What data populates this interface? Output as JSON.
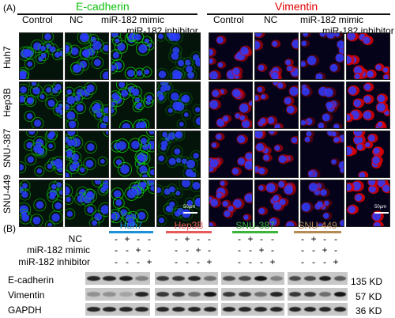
{
  "panel_a": {
    "letter": "(A)",
    "ecadherin_title": "E-cadherin",
    "vimentin_title": "Vimentin",
    "columns": [
      "Control",
      "NC",
      "miR-182 mimic",
      "miR-182 inhibitor"
    ],
    "rows": [
      "Huh7",
      "Hep3B",
      "SNU-387",
      "SNU-449"
    ],
    "scale_bar": "50μm",
    "colors": {
      "ecadherin": "#10c010",
      "vimentin": "#e00000",
      "nuclei": "#2a3cff"
    }
  },
  "panel_b": {
    "letter": "(B)",
    "cell_lines": [
      "Huh7",
      "Hep3B",
      "SNU-387",
      "SNU-449"
    ],
    "conditions": [
      {
        "label": "NC",
        "signs": [
          "-",
          "+",
          "-",
          "-"
        ]
      },
      {
        "label": "miR-182 mimic",
        "signs": [
          "-",
          "-",
          "+",
          "-"
        ]
      },
      {
        "label": "miR-182 inhibitor",
        "signs": [
          "-",
          "-",
          "-",
          "+"
        ]
      }
    ],
    "proteins": [
      {
        "name": "E-cadherin",
        "size": "135 KD"
      },
      {
        "name": "Vimentin",
        "size": "57 KD"
      },
      {
        "name": "GAPDH",
        "size": "36 KD"
      }
    ],
    "tag_colors": [
      "#1b92d6",
      "#e65a5a",
      "#39b539",
      "#b58a55"
    ]
  }
}
